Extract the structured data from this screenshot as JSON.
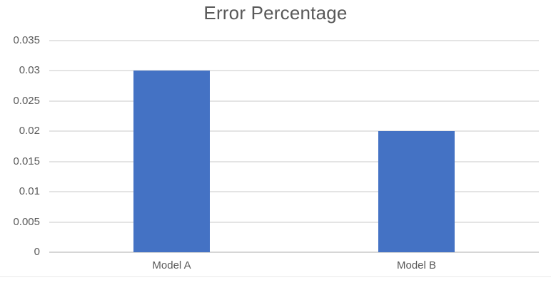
{
  "chart_data": {
    "type": "bar",
    "title": "Error Percentage",
    "categories": [
      "Model A",
      "Model B"
    ],
    "values": [
      0.03,
      0.02
    ],
    "xlabel": "",
    "ylabel": "",
    "ylim": [
      0,
      0.035
    ],
    "yticks": [
      0,
      0.005,
      0.01,
      0.015,
      0.02,
      0.025,
      0.03,
      0.035
    ],
    "ytick_labels": [
      "0",
      "0.005",
      "0.01",
      "0.015",
      "0.02",
      "0.025",
      "0.03",
      "0.035"
    ],
    "grid": true,
    "legend": false,
    "bar_color": "#4472C4"
  },
  "colors": {
    "title_text": "#595959",
    "axis_text": "#595959",
    "gridline": "#e4e4e4",
    "axis_line": "#d6d6d6",
    "background": "#ffffff",
    "frame_border": "#eaeaea"
  }
}
